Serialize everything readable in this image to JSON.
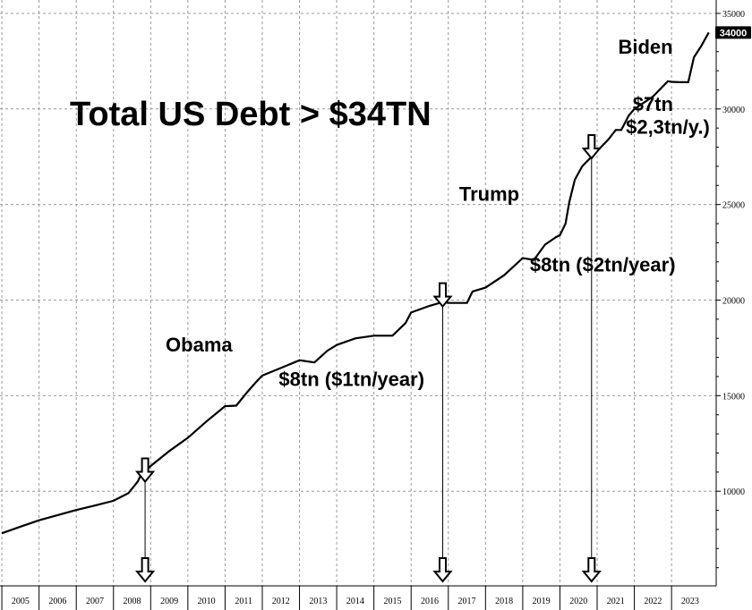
{
  "chart_data": {
    "type": "line",
    "title": "Total US Debt > $34TN",
    "xlabel": "",
    "ylabel": "",
    "xlim": [
      2004.95,
      2024.2
    ],
    "ylim": [
      5050,
      35700
    ],
    "x_ticks": [
      "2005",
      "2006",
      "2007",
      "2008",
      "2009",
      "2010",
      "2011",
      "2012",
      "2013",
      "2014",
      "2015",
      "2016",
      "2017",
      "2018",
      "2019",
      "2020",
      "2021",
      "2022",
      "2023"
    ],
    "y_ticks": [
      10000,
      15000,
      20000,
      25000,
      30000,
      35000
    ],
    "last_value_label": "34000",
    "grid": true,
    "series": [
      {
        "x": [
          2005.0,
          2005.5,
          2006.0,
          2006.5,
          2007.0,
          2007.5,
          2008.0,
          2008.4,
          2008.65,
          2008.72,
          2008.8,
          2009.0,
          2009.5,
          2010.0,
          2010.5,
          2011.0,
          2011.3,
          2011.6,
          2011.85,
          2012.0,
          2012.5,
          2013.0,
          2013.4,
          2013.75,
          2014.0,
          2014.5,
          2015.0,
          2015.5,
          2015.85,
          2016.0,
          2016.5,
          2016.85,
          2017.0,
          2017.5,
          2017.65,
          2018.0,
          2018.5,
          2019.0,
          2019.3,
          2019.6,
          2019.9,
          2020.0,
          2020.15,
          2020.25,
          2020.4,
          2020.6,
          2020.75,
          2021.0,
          2021.3,
          2021.5,
          2021.65,
          2021.85,
          2022.0,
          2022.5,
          2022.9,
          2023.0,
          2023.2,
          2023.45,
          2023.6,
          2023.8,
          2024.0
        ],
        "y": [
          7800,
          8150,
          8480,
          8750,
          9020,
          9250,
          9500,
          9900,
          10500,
          10780,
          10950,
          11320,
          12100,
          12800,
          13650,
          14450,
          14480,
          15200,
          15750,
          16050,
          16450,
          16850,
          16740,
          17350,
          17650,
          18000,
          18140,
          18140,
          18800,
          19350,
          19700,
          19900,
          19850,
          19850,
          20450,
          20650,
          21300,
          22200,
          22100,
          22900,
          23300,
          23400,
          24000,
          25100,
          26300,
          27000,
          27300,
          27800,
          28400,
          28900,
          28900,
          29650,
          30000,
          30650,
          31450,
          31420,
          31400,
          31400,
          32700,
          33300,
          34000
        ]
      }
    ],
    "annotations": [
      {
        "text": "Obama",
        "x": 2010.3,
        "y": 17300
      },
      {
        "text": "$8tn ($1tn/year)",
        "x": 2014.4,
        "y": 15500
      },
      {
        "text": "Trump",
        "x": 2018.1,
        "y": 25200
      },
      {
        "text": "$8tn ($2tn/year)",
        "x": 2021.15,
        "y": 21500
      },
      {
        "text": "Biden",
        "x": 2022.3,
        "y": 32900
      },
      {
        "text": "$7tn",
        "x": 2022.5,
        "y": 29900
      },
      {
        "text": "$2,3tn/y.)",
        "x": 2022.9,
        "y": 28700
      }
    ],
    "markers": [
      {
        "x": 2008.85,
        "y": 10780
      },
      {
        "x": 2016.85,
        "y": 19950
      },
      {
        "x": 2020.85,
        "y": 27700
      }
    ]
  }
}
